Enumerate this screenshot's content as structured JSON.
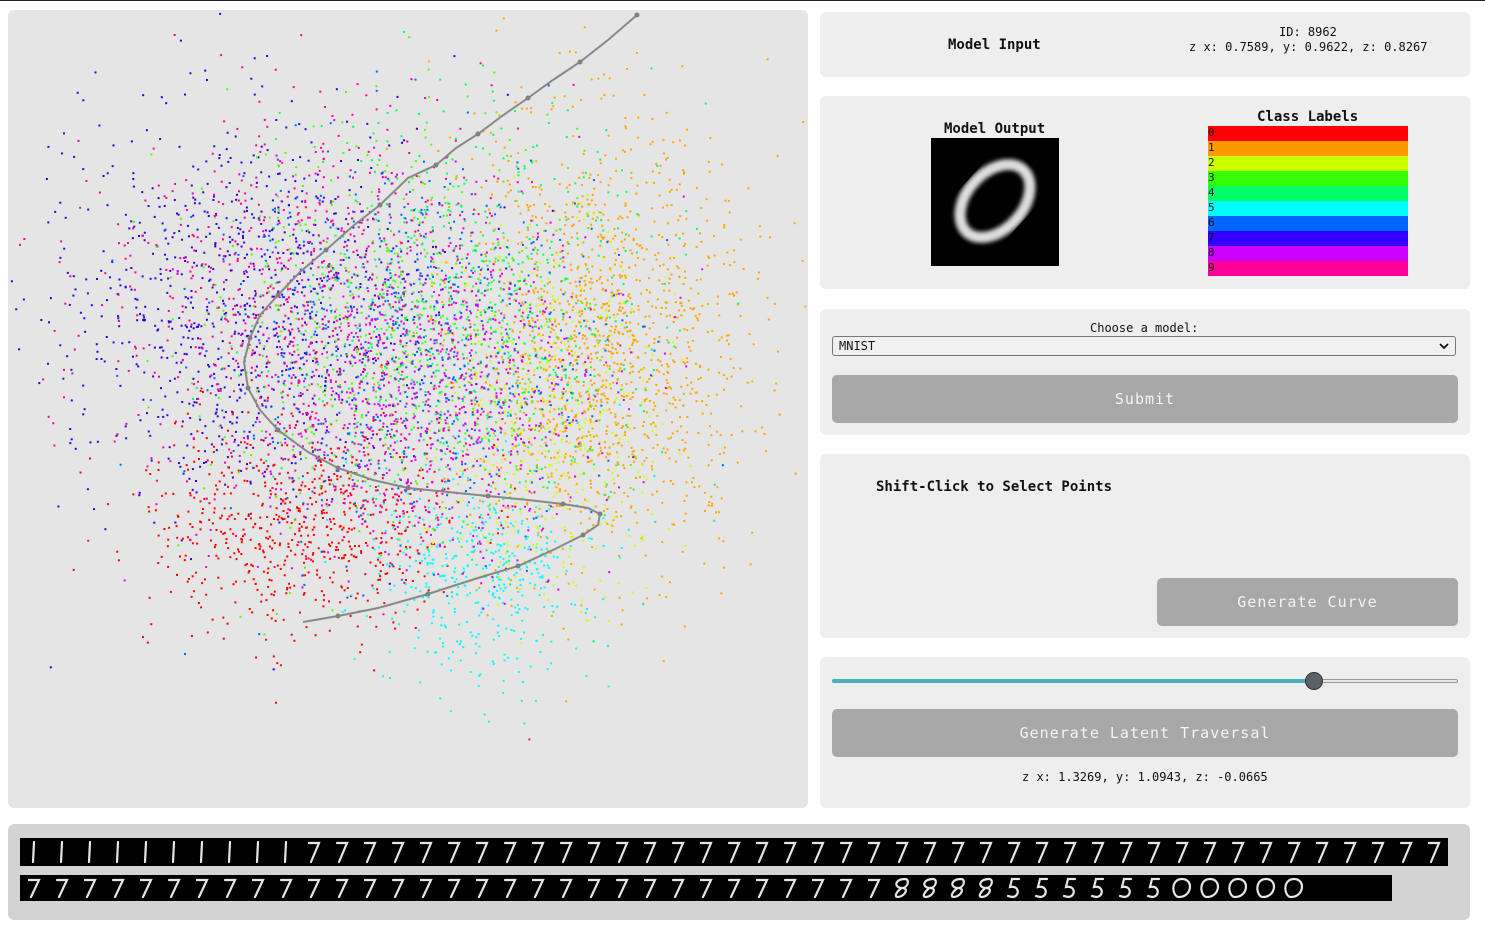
{
  "scatter": {
    "class_colors": [
      "#ff0000",
      "#ffa500",
      "#d4ff00",
      "#4cff00",
      "#00ff66",
      "#00ffff",
      "#0066ff",
      "#3300dd",
      "#dd00ff",
      "#ff0099"
    ],
    "curve_color": "#888888"
  },
  "model_input": {
    "title": "Model Input",
    "id_text": "ID: 8962",
    "z_text": "z x: 0.7589, y: 0.9622, z: 0.8267"
  },
  "model_output": {
    "title": "Model Output",
    "digit_shown": "0"
  },
  "class_labels": {
    "title": "Class Labels",
    "items": [
      {
        "label": "0",
        "color": "#ff0000"
      },
      {
        "label": "1",
        "color": "#ff9900"
      },
      {
        "label": "2",
        "color": "#ccff00"
      },
      {
        "label": "3",
        "color": "#33ff00"
      },
      {
        "label": "4",
        "color": "#00ff66"
      },
      {
        "label": "5",
        "color": "#00ffff"
      },
      {
        "label": "6",
        "color": "#0066ff"
      },
      {
        "label": "7",
        "color": "#3300ff"
      },
      {
        "label": "8",
        "color": "#cc00ff"
      },
      {
        "label": "9",
        "color": "#ff0099"
      }
    ]
  },
  "model_select": {
    "label": "Choose a model:",
    "value": "MNIST",
    "submit_label": "Submit"
  },
  "point_select": {
    "instruction": "Shift-Click to Select Points",
    "generate_curve_label": "Generate Curve"
  },
  "traversal": {
    "slider_value": 0.77,
    "button_label": "Generate Latent Traversal",
    "z_text": "z x: 1.3269, y: 1.0943, z: -0.0665"
  },
  "strips": {
    "row1_digits": "1111111111777777777777777777777777777777777777777777",
    "row2_digits": "7777777777777777777777777777777888855555500000"
  }
}
